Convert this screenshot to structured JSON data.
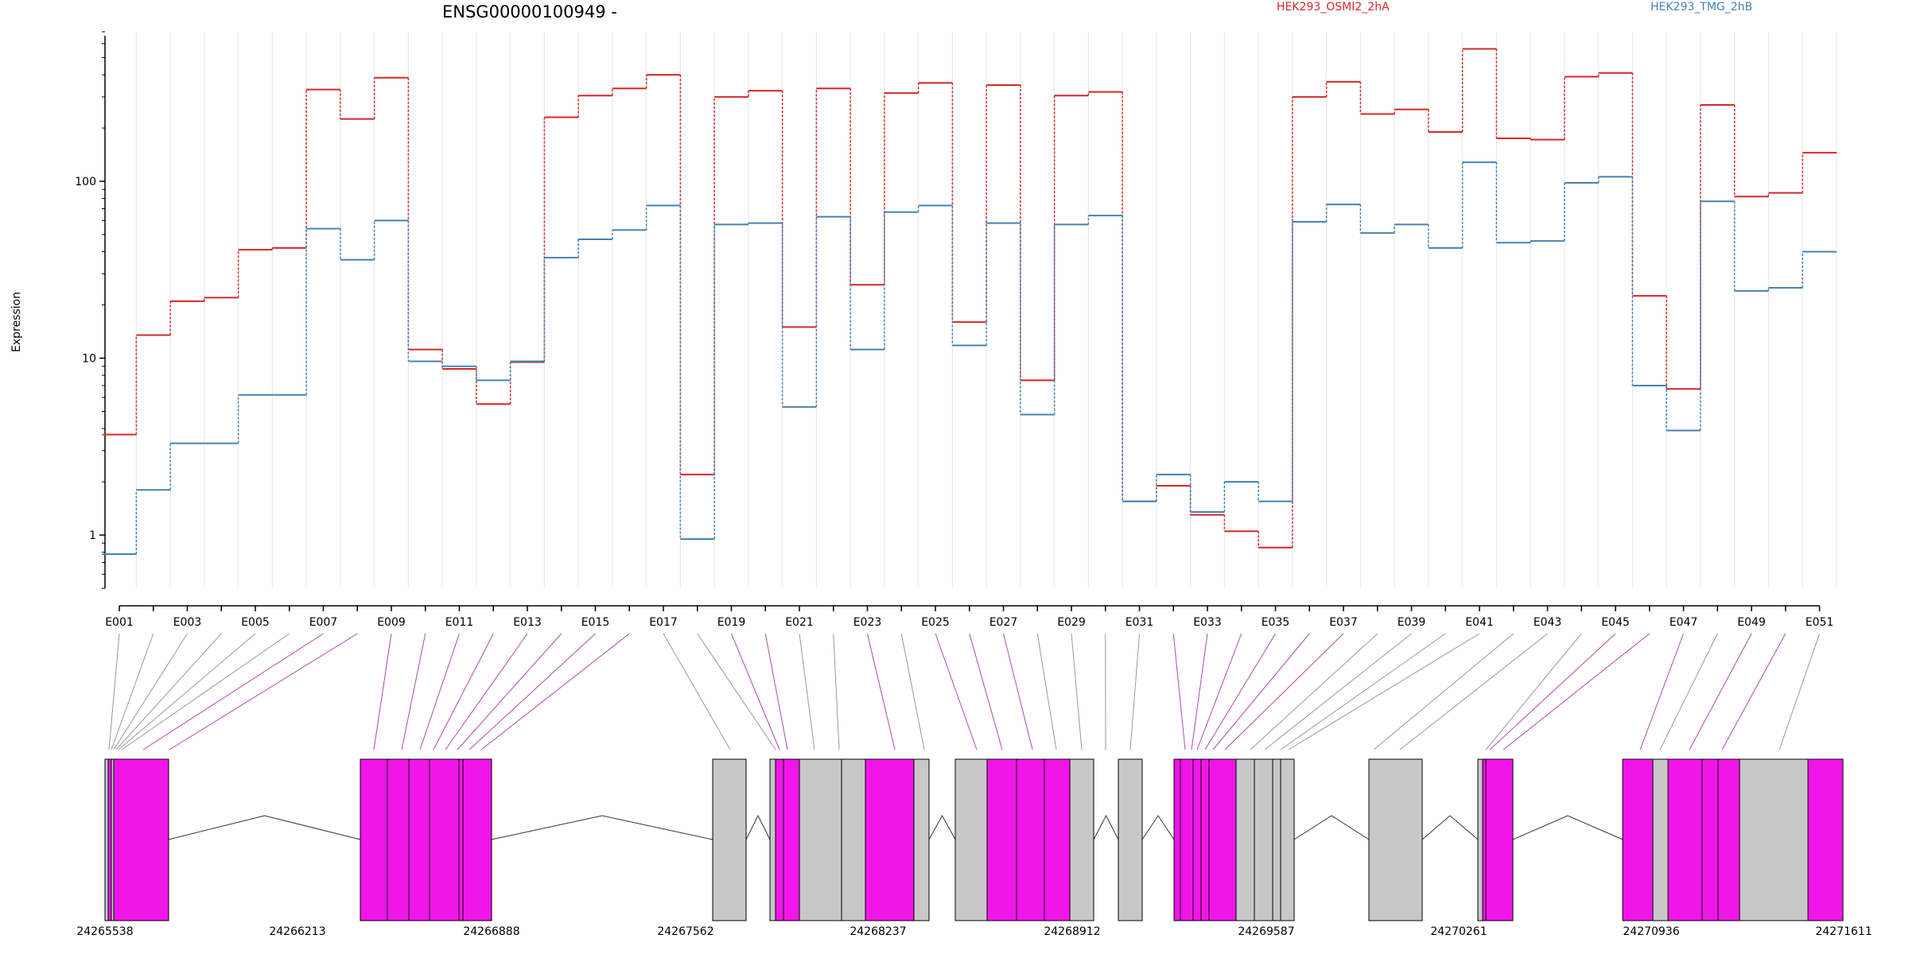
{
  "chart_data": {
    "type": "line",
    "title": "ENSG00000100949 -",
    "xlabel": "",
    "ylabel": "Expression",
    "y_scale": "log",
    "y_ticks": [
      1,
      10,
      100
    ],
    "y_tick_labels": [
      "1",
      "10",
      "100"
    ],
    "ylim": [
      0.5,
      700
    ],
    "legend_position": "top",
    "grid": true,
    "categories": [
      "E001",
      "E002",
      "E003",
      "E004",
      "E005",
      "E006",
      "E007",
      "E008",
      "E009",
      "E010",
      "E011",
      "E012",
      "E013",
      "E014",
      "E015",
      "E016",
      "E017",
      "E018",
      "E019",
      "E020",
      "E021",
      "E022",
      "E023",
      "E024",
      "E025",
      "E026",
      "E027",
      "E028",
      "E029",
      "E030",
      "E031",
      "E032",
      "E033",
      "E034",
      "E035",
      "E036",
      "E037",
      "E038",
      "E039",
      "E040",
      "E041",
      "E042",
      "E043",
      "E044",
      "E045",
      "E046",
      "E047",
      "E048",
      "E049",
      "E050",
      "E051"
    ],
    "x_tick_labels": [
      "E001",
      "E003",
      "E005",
      "E007",
      "E009",
      "E011",
      "E013",
      "E015",
      "E017",
      "E019",
      "E021",
      "E023",
      "E025",
      "E027",
      "E029",
      "E031",
      "E033",
      "E035",
      "E037",
      "E039",
      "E041",
      "E043",
      "E045",
      "E047",
      "E049",
      "E051"
    ],
    "series": [
      {
        "name": "HEK293_OSMI2_2hA",
        "color": "#d62728",
        "values": [
          3.7,
          13.5,
          21,
          22,
          41,
          42,
          330,
          225,
          385,
          11.2,
          8.7,
          5.5,
          9.5,
          230,
          305,
          335,
          400,
          2.2,
          300,
          325,
          15,
          335,
          26,
          315,
          360,
          16,
          350,
          7.5,
          305,
          320,
          1.55,
          1.9,
          1.3,
          1.05,
          0.85,
          300,
          365,
          240,
          255,
          190,
          560,
          175,
          172,
          390,
          410,
          22.5,
          6.7,
          270,
          82,
          86,
          145
        ]
      },
      {
        "name": "HEK293_TMG_2hB",
        "color": "#4682b4",
        "values": [
          0.78,
          1.8,
          3.3,
          3.3,
          6.2,
          6.2,
          54,
          36,
          60,
          9.6,
          9.0,
          7.5,
          9.6,
          37,
          47,
          53,
          73,
          0.95,
          57,
          58,
          5.3,
          63,
          11.2,
          67,
          73,
          11.8,
          58,
          4.8,
          57,
          64,
          1.55,
          2.2,
          1.35,
          2.0,
          1.55,
          59,
          74,
          51,
          57,
          42,
          128,
          45,
          46,
          98,
          106,
          7,
          3.9,
          77,
          24,
          25,
          40
        ]
      }
    ],
    "gene_track": {
      "coordinate_labels": [
        "24265538",
        "24266213",
        "24266888",
        "24267562",
        "24268237",
        "24268912",
        "24269587",
        "24270261",
        "24270936",
        "24271611"
      ],
      "exon_colors": {
        "highlighted": "#f015e8",
        "other": "#c8c8c8"
      }
    }
  }
}
